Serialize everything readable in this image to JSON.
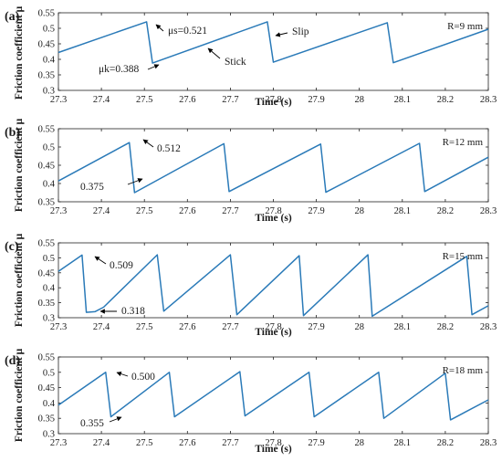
{
  "chart_data": [
    {
      "type": "line",
      "panel_label": "(a)",
      "radius_label": "R=9 mm",
      "xlabel": "Time (s)",
      "ylabel": "Friction coefficient μ",
      "xlim": [
        27.3,
        28.3
      ],
      "ylim": [
        0.3,
        0.55
      ],
      "xticks": [
        "27.3",
        "27.4",
        "27.5",
        "27.6",
        "27.7",
        "27.8",
        "27.9",
        "28",
        "28.1",
        "28.2",
        "28.3"
      ],
      "yticks": [
        "0.3",
        "0.35",
        "0.4",
        "0.45",
        "0.5",
        "0.55"
      ],
      "x": [
        27.3,
        27.505,
        27.519,
        27.786,
        27.8,
        28.065,
        28.079,
        28.3
      ],
      "y": [
        0.422,
        0.521,
        0.388,
        0.521,
        0.391,
        0.518,
        0.389,
        0.497
      ],
      "annotations": [
        {
          "text": "μs=0.521",
          "x": 27.505,
          "y": 0.521
        },
        {
          "text": "μk=0.388",
          "x": 27.519,
          "y": 0.388
        },
        {
          "text": "Stick",
          "x": 27.68,
          "y": 0.47
        },
        {
          "text": "Slip",
          "x": 27.8,
          "y": 0.5
        }
      ]
    },
    {
      "type": "line",
      "panel_label": "(b)",
      "radius_label": "R=12 mm",
      "xlabel": "Time (s)",
      "ylabel": "Friction coefficient μ",
      "xlim": [
        27.3,
        28.3
      ],
      "ylim": [
        0.35,
        0.55
      ],
      "xticks": [
        "27.3",
        "27.4",
        "27.5",
        "27.6",
        "27.7",
        "27.8",
        "27.9",
        "28",
        "28.1",
        "28.2",
        "28.3"
      ],
      "yticks": [
        "0.35",
        "0.4",
        "0.45",
        "0.5",
        "0.55"
      ],
      "x": [
        27.3,
        27.465,
        27.477,
        27.685,
        27.697,
        27.91,
        27.922,
        28.14,
        28.152,
        28.3
      ],
      "y": [
        0.407,
        0.512,
        0.375,
        0.509,
        0.378,
        0.508,
        0.376,
        0.51,
        0.378,
        0.472
      ],
      "annotations": [
        {
          "text": "0.512",
          "x": 27.465,
          "y": 0.512
        },
        {
          "text": "0.375",
          "x": 27.477,
          "y": 0.375
        }
      ]
    },
    {
      "type": "line",
      "panel_label": "(c)",
      "radius_label": "R=15 mm",
      "xlabel": "Time (s)",
      "ylabel": "Friction coefficient μ",
      "xlim": [
        27.3,
        28.3
      ],
      "ylim": [
        0.3,
        0.55
      ],
      "xticks": [
        "27.3",
        "27.4",
        "27.5",
        "27.6",
        "27.7",
        "27.8",
        "27.9",
        "28",
        "28.1",
        "28.2",
        "28.3"
      ],
      "yticks": [
        "0.3",
        "0.35",
        "0.4",
        "0.45",
        "0.5",
        "0.55"
      ],
      "x": [
        27.3,
        27.355,
        27.365,
        27.385,
        27.405,
        27.53,
        27.545,
        27.7,
        27.715,
        27.86,
        27.87,
        28.02,
        28.03,
        28.25,
        28.262,
        28.3
      ],
      "y": [
        0.455,
        0.509,
        0.318,
        0.32,
        0.335,
        0.51,
        0.322,
        0.51,
        0.31,
        0.507,
        0.307,
        0.51,
        0.305,
        0.505,
        0.31,
        0.34
      ],
      "annotations": [
        {
          "text": "0.509",
          "x": 27.355,
          "y": 0.509
        },
        {
          "text": "0.318",
          "x": 27.375,
          "y": 0.318
        }
      ]
    },
    {
      "type": "line",
      "panel_label": "(d)",
      "radius_label": "R=18 mm",
      "xlabel": "Time (s)",
      "ylabel": "Friction coefficient μ",
      "xlim": [
        27.3,
        28.3
      ],
      "ylim": [
        0.3,
        0.55
      ],
      "xticks": [
        "27.3",
        "27.4",
        "27.5",
        "27.6",
        "27.7",
        "27.8",
        "27.9",
        "28",
        "28.1",
        "28.2",
        "28.3"
      ],
      "yticks": [
        "0.3",
        "0.35",
        "0.4",
        "0.45",
        "0.5",
        "0.55"
      ],
      "x": [
        27.3,
        27.41,
        27.422,
        27.558,
        27.57,
        27.722,
        27.734,
        27.883,
        27.895,
        28.045,
        28.057,
        28.2,
        28.212,
        28.3
      ],
      "y": [
        0.393,
        0.5,
        0.355,
        0.5,
        0.355,
        0.502,
        0.358,
        0.5,
        0.355,
        0.5,
        0.35,
        0.497,
        0.345,
        0.41
      ],
      "annotations": [
        {
          "text": "0.500",
          "x": 27.41,
          "y": 0.5
        },
        {
          "text": "0.355",
          "x": 27.422,
          "y": 0.355
        }
      ]
    }
  ]
}
